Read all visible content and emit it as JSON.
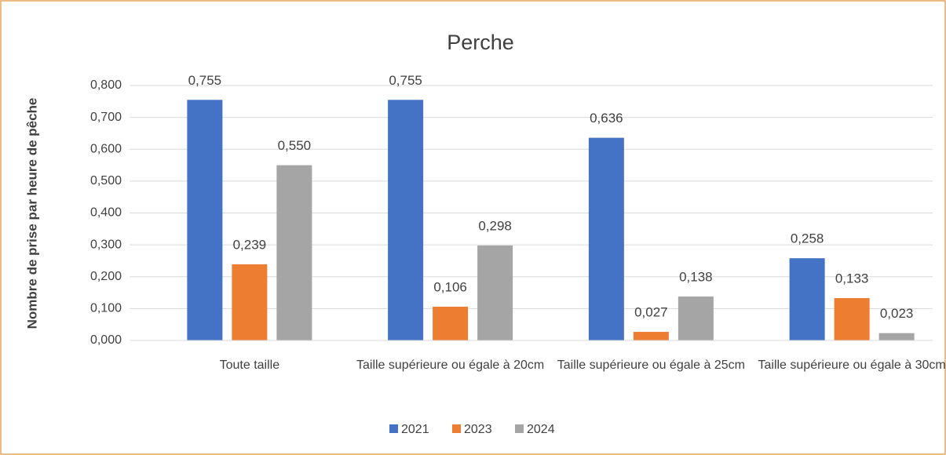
{
  "chart_data": {
    "type": "bar",
    "title": "Perche",
    "ylabel": "Nombre de prise par heure de pêche",
    "categories": [
      "Toute taille",
      "Taille supérieure ou égale à 20cm",
      "Taille supérieure ou égale à 25cm",
      "Taille supérieure ou égale à 30cm"
    ],
    "series": [
      {
        "name": "2021",
        "color": "#4472c4",
        "values": [
          0.755,
          0.755,
          0.636,
          0.258
        ],
        "value_labels": [
          "0,755",
          "0,755",
          "0,636",
          "0,258"
        ]
      },
      {
        "name": "2023",
        "color": "#ed7d31",
        "values": [
          0.239,
          0.106,
          0.027,
          0.133
        ],
        "value_labels": [
          "0,239",
          "0,106",
          "0,027",
          "0,133"
        ]
      },
      {
        "name": "2024",
        "color": "#a5a5a5",
        "values": [
          0.55,
          0.298,
          0.138,
          0.023
        ],
        "value_labels": [
          "0,550",
          "0,298",
          "0,138",
          "0,023"
        ]
      }
    ],
    "ylim": [
      0,
      0.8
    ],
    "yticks": [
      {
        "value": 0,
        "label": "0,000"
      },
      {
        "value": 0.1,
        "label": "0,100"
      },
      {
        "value": 0.2,
        "label": "0,200"
      },
      {
        "value": 0.3,
        "label": "0,300"
      },
      {
        "value": 0.4,
        "label": "0,400"
      },
      {
        "value": 0.5,
        "label": "0,500"
      },
      {
        "value": 0.6,
        "label": "0,600"
      },
      {
        "value": 0.7,
        "label": "0,700"
      },
      {
        "value": 0.8,
        "label": "0,800"
      }
    ],
    "grid": true,
    "legend": "bottom"
  }
}
